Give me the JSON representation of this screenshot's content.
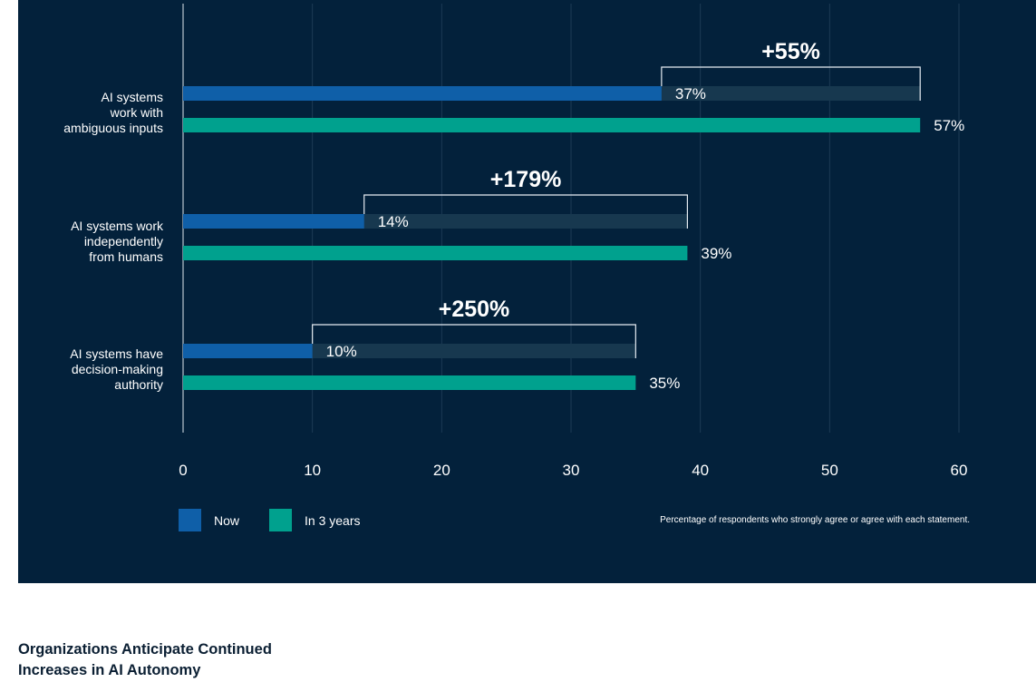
{
  "chart_data": {
    "type": "bar",
    "orientation": "horizontal",
    "categories": [
      "AI systems\nwork with\nambiguous inputs",
      "AI systems work\nindependently\nfrom humans",
      "AI systems have\ndecision-making\nauthority"
    ],
    "series": [
      {
        "name": "Now",
        "values": [
          37,
          14,
          10
        ],
        "labels": [
          "37%",
          "14%",
          "10%"
        ],
        "color": "#0f5fa8"
      },
      {
        "name": "In 3 years",
        "values": [
          57,
          39,
          35
        ],
        "labels": [
          "57%",
          "39%",
          "35%"
        ],
        "color": "#00a18e"
      }
    ],
    "annotations": [
      "+55%",
      "+179%",
      "+250%"
    ],
    "xlim": [
      0,
      60
    ],
    "x_ticks": [
      0,
      10,
      20,
      30,
      40,
      50,
      60
    ],
    "x_tick_labels": [
      "0",
      "10",
      "20",
      "30",
      "40",
      "50",
      "60"
    ],
    "grid": true,
    "legend_position": "bottom-left",
    "footnote": "Percentage of respondents who strongly agree or agree with each statement.",
    "title": "Organizations Anticipate Continued\nIncreases in AI Autonomy"
  },
  "colors": {
    "panel_background": "#03213b",
    "now": "#0f5fa8",
    "in_3_years": "#00a18e",
    "ghost_bar": "#17384f",
    "gridline": "#1d3a55",
    "axis_text": "#ffffff"
  }
}
